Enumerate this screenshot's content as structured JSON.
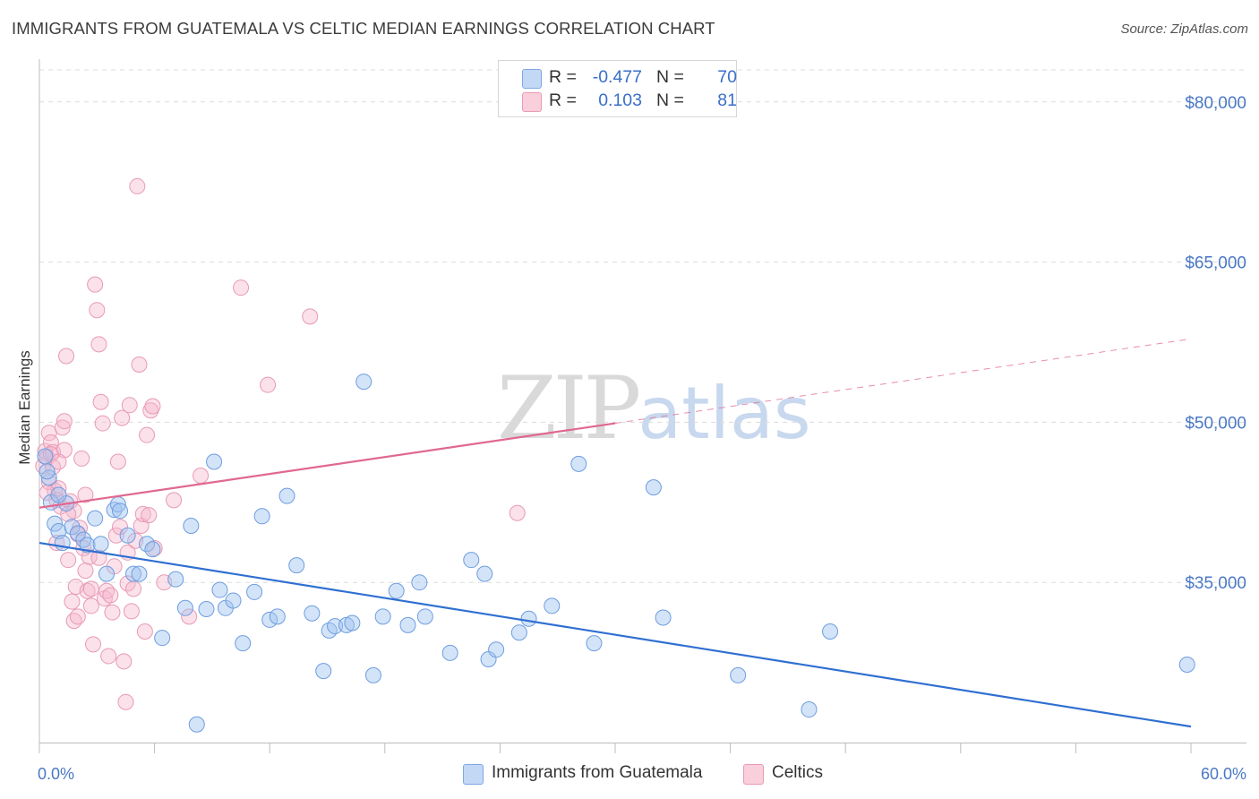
{
  "header": {
    "title": "IMMIGRANTS FROM GUATEMALA VS CELTIC MEDIAN EARNINGS CORRELATION CHART",
    "source": "Source: ZipAtlas.com"
  },
  "watermark": {
    "zip": "ZIP",
    "atlas": "atlas"
  },
  "legend": {
    "rows": [
      {
        "r_label": "R =",
        "r_value": "-0.477",
        "n_label": "N =",
        "n_value": "70",
        "color": "#a9c8f0"
      },
      {
        "r_label": "R =",
        "r_value": "0.103",
        "n_label": "N =",
        "n_value": "81",
        "color": "#f5b8cb"
      }
    ]
  },
  "bottom_legend": {
    "items": [
      {
        "label": "Immigrants from Guatemala",
        "color": "#a9c8f0"
      },
      {
        "label": "Celtics",
        "color": "#f5b8cb"
      }
    ]
  },
  "chart_data": {
    "type": "scatter",
    "title": "IMMIGRANTS FROM GUATEMALA VS CELTIC MEDIAN EARNINGS CORRELATION CHART",
    "xlabel": "",
    "ylabel": "Median Earnings",
    "xlim": [
      0,
      60
    ],
    "ylim": [
      20000,
      83000
    ],
    "x_tick_labels": [
      "0.0%",
      "60.0%"
    ],
    "y_ticks": [
      35000,
      50000,
      65000,
      80000
    ],
    "y_tick_labels": [
      "$35,000",
      "$50,000",
      "$65,000",
      "$80,000"
    ],
    "grid": "horizontal dashed",
    "colors": {
      "blue": "#4a86d9",
      "pink": "#e07aa0",
      "blue_line": "#2f6fd1",
      "pink_line": "#e0688f"
    },
    "series": [
      {
        "name": "Immigrants from Guatemala",
        "color": "blue",
        "trend": {
          "x": [
            0,
            60
          ],
          "y": [
            38700,
            21500
          ],
          "solid_to": 60
        },
        "points": [
          [
            0.3,
            46800
          ],
          [
            0.5,
            44800
          ],
          [
            0.4,
            45400
          ],
          [
            0.6,
            42500
          ],
          [
            0.8,
            40500
          ],
          [
            1.0,
            39800
          ],
          [
            1.2,
            38700
          ],
          [
            1.4,
            42400
          ],
          [
            1.7,
            40200
          ],
          [
            2.0,
            39600
          ],
          [
            2.3,
            39000
          ],
          [
            2.5,
            38500
          ],
          [
            2.9,
            41000
          ],
          [
            3.2,
            38600
          ],
          [
            3.5,
            35800
          ],
          [
            3.9,
            41800
          ],
          [
            4.1,
            42300
          ],
          [
            4.2,
            41700
          ],
          [
            4.6,
            39400
          ],
          [
            4.9,
            35800
          ],
          [
            5.2,
            35800
          ],
          [
            5.6,
            38600
          ],
          [
            5.9,
            38100
          ],
          [
            6.4,
            29800
          ],
          [
            7.1,
            35300
          ],
          [
            7.6,
            32600
          ],
          [
            7.9,
            40300
          ],
          [
            8.2,
            21700
          ],
          [
            8.7,
            32500
          ],
          [
            9.1,
            46300
          ],
          [
            9.4,
            34300
          ],
          [
            9.7,
            32600
          ],
          [
            10.1,
            33300
          ],
          [
            10.6,
            29300
          ],
          [
            11.2,
            34100
          ],
          [
            11.6,
            41200
          ],
          [
            12.0,
            31500
          ],
          [
            12.4,
            31800
          ],
          [
            12.9,
            43100
          ],
          [
            13.4,
            36600
          ],
          [
            14.2,
            32100
          ],
          [
            14.8,
            26700
          ],
          [
            15.1,
            30500
          ],
          [
            15.4,
            30900
          ],
          [
            16.0,
            31000
          ],
          [
            16.3,
            31200
          ],
          [
            16.9,
            53800
          ],
          [
            17.4,
            26300
          ],
          [
            17.9,
            31800
          ],
          [
            18.6,
            34200
          ],
          [
            19.2,
            31000
          ],
          [
            19.8,
            35000
          ],
          [
            20.1,
            31800
          ],
          [
            21.4,
            28400
          ],
          [
            22.5,
            37100
          ],
          [
            23.2,
            35800
          ],
          [
            23.4,
            27800
          ],
          [
            23.8,
            28700
          ],
          [
            25.0,
            30300
          ],
          [
            25.5,
            31600
          ],
          [
            26.7,
            32800
          ],
          [
            28.1,
            46100
          ],
          [
            28.9,
            29300
          ],
          [
            32.0,
            43900
          ],
          [
            32.5,
            31700
          ],
          [
            36.4,
            26300
          ],
          [
            40.1,
            23100
          ],
          [
            41.2,
            30400
          ],
          [
            59.8,
            27300
          ],
          [
            1.0,
            43200
          ]
        ]
      },
      {
        "name": "Celtics",
        "color": "pink",
        "trend": {
          "x": [
            0,
            60
          ],
          "y": [
            42000,
            57800
          ],
          "solid_to": 30
        },
        "points": [
          [
            0.2,
            45900
          ],
          [
            0.3,
            47300
          ],
          [
            0.4,
            46700
          ],
          [
            0.5,
            44400
          ],
          [
            0.5,
            49000
          ],
          [
            0.6,
            48100
          ],
          [
            0.7,
            47200
          ],
          [
            0.8,
            43600
          ],
          [
            0.9,
            42700
          ],
          [
            1.0,
            43800
          ],
          [
            1.1,
            42100
          ],
          [
            1.2,
            49500
          ],
          [
            1.3,
            50100
          ],
          [
            1.4,
            56200
          ],
          [
            1.5,
            37100
          ],
          [
            1.6,
            42600
          ],
          [
            1.7,
            33200
          ],
          [
            1.8,
            31400
          ],
          [
            1.9,
            34600
          ],
          [
            2.0,
            31800
          ],
          [
            2.1,
            40100
          ],
          [
            2.2,
            46600
          ],
          [
            2.3,
            38200
          ],
          [
            2.4,
            43200
          ],
          [
            2.5,
            34200
          ],
          [
            2.6,
            37400
          ],
          [
            2.7,
            32800
          ],
          [
            2.8,
            29200
          ],
          [
            2.9,
            62900
          ],
          [
            3.0,
            60500
          ],
          [
            3.1,
            57300
          ],
          [
            3.2,
            51900
          ],
          [
            3.3,
            49900
          ],
          [
            3.4,
            33500
          ],
          [
            3.5,
            34200
          ],
          [
            3.6,
            28100
          ],
          [
            3.7,
            33800
          ],
          [
            3.8,
            32200
          ],
          [
            3.9,
            36500
          ],
          [
            4.0,
            39400
          ],
          [
            4.1,
            46300
          ],
          [
            4.2,
            40200
          ],
          [
            4.3,
            50400
          ],
          [
            4.4,
            27600
          ],
          [
            4.5,
            23800
          ],
          [
            4.6,
            34900
          ],
          [
            4.7,
            51600
          ],
          [
            4.8,
            32300
          ],
          [
            4.9,
            34400
          ],
          [
            5.0,
            38900
          ],
          [
            5.1,
            72100
          ],
          [
            5.2,
            55400
          ],
          [
            5.3,
            40300
          ],
          [
            5.4,
            41400
          ],
          [
            5.5,
            30400
          ],
          [
            5.6,
            48800
          ],
          [
            5.7,
            41300
          ],
          [
            5.8,
            51100
          ],
          [
            5.9,
            51500
          ],
          [
            6.0,
            38200
          ],
          [
            6.5,
            35000
          ],
          [
            7.0,
            42700
          ],
          [
            7.8,
            31800
          ],
          [
            8.4,
            45000
          ],
          [
            10.5,
            62600
          ],
          [
            11.9,
            53500
          ],
          [
            14.1,
            59900
          ],
          [
            24.9,
            41500
          ],
          [
            1.3,
            47400
          ],
          [
            1.8,
            41700
          ],
          [
            2.4,
            36100
          ],
          [
            0.9,
            38700
          ],
          [
            3.1,
            37300
          ],
          [
            0.6,
            47000
          ],
          [
            0.7,
            45800
          ],
          [
            1.0,
            46300
          ],
          [
            1.5,
            41400
          ],
          [
            2.0,
            39500
          ],
          [
            2.7,
            34400
          ],
          [
            4.6,
            37800
          ],
          [
            0.4,
            43400
          ]
        ]
      }
    ]
  }
}
